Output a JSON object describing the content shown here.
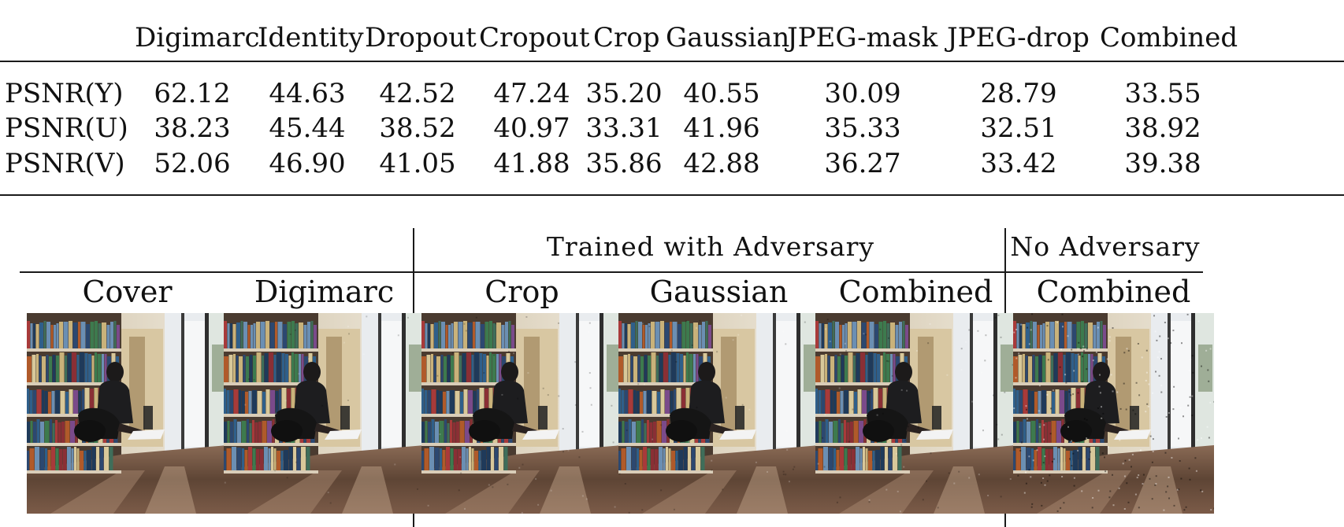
{
  "table": {
    "columns": [
      "Digimarc",
      "Identity",
      "Dropout",
      "Cropout",
      "Crop",
      "Gaussian",
      "JPEG-mask",
      "JPEG-drop",
      "Combined"
    ],
    "rows": [
      {
        "label": "PSNR(Y)",
        "values": [
          "62.12",
          "44.63",
          "42.52",
          "47.24",
          "35.20",
          "40.55",
          "30.09",
          "28.79",
          "33.55"
        ]
      },
      {
        "label": "PSNR(U)",
        "values": [
          "38.23",
          "45.44",
          "38.52",
          "40.97",
          "33.31",
          "41.96",
          "35.33",
          "32.51",
          "38.92"
        ]
      },
      {
        "label": "PSNR(V)",
        "values": [
          "52.06",
          "46.90",
          "41.05",
          "41.88",
          "35.86",
          "42.88",
          "36.27",
          "33.42",
          "39.38"
        ]
      }
    ]
  },
  "figure": {
    "groups": {
      "adversary": "Trained with Adversary",
      "no_adversary": "No Adversary"
    },
    "images": [
      {
        "label": "Cover",
        "image": "library-reading-photo",
        "noise": 0
      },
      {
        "label": "Digimarc",
        "image": "library-reading-photo",
        "noise": 0.1
      },
      {
        "label": "Crop",
        "image": "library-reading-photo",
        "noise": 0.2
      },
      {
        "label": "Gaussian",
        "image": "library-reading-photo",
        "noise": 0.2
      },
      {
        "label": "Combined",
        "image": "library-reading-photo",
        "noise": 0.3
      },
      {
        "label": "Combined",
        "image": "library-reading-photo",
        "noise": 0.9
      }
    ]
  }
}
